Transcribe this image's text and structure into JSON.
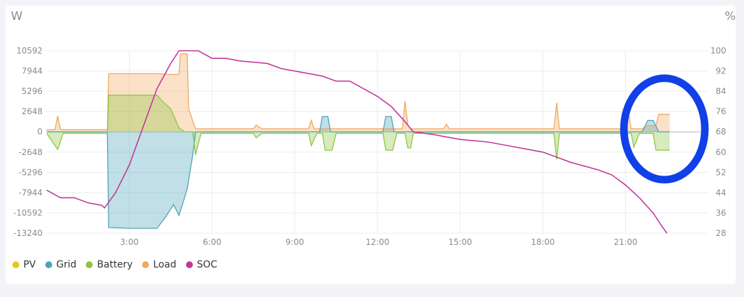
{
  "chart_data": {
    "type": "area",
    "left_unit": "W",
    "right_unit": "%",
    "y_ticks": [
      "10592",
      "7944",
      "5296",
      "2648",
      "0",
      "-2648",
      "-5296",
      "-7944",
      "-10592",
      "-13240"
    ],
    "y_tick_values": [
      10592,
      7944,
      5296,
      2648,
      0,
      -2648,
      -5296,
      -7944,
      -10592,
      -13240
    ],
    "y2_ticks": [
      "100",
      "92",
      "84",
      "76",
      "68",
      "60",
      "52",
      "44",
      "36",
      "28"
    ],
    "y2_tick_values": [
      100,
      92,
      84,
      76,
      68,
      60,
      52,
      44,
      36,
      28
    ],
    "x_ticks": [
      "3:00",
      "6:00",
      "9:00",
      "12:00",
      "15:00",
      "18:00",
      "21:00"
    ],
    "x_tick_values": [
      3,
      6,
      9,
      12,
      15,
      18,
      21
    ],
    "xlim": [
      0,
      24
    ],
    "ylim": [
      -13240,
      10592
    ],
    "y2lim": [
      28,
      100
    ],
    "grid": true,
    "legend_position": "bottom-left",
    "series": [
      {
        "name": "PV",
        "color": "#e6c619",
        "points": []
      },
      {
        "name": "Grid",
        "color": "#4aa3b8",
        "points": [
          [
            0,
            0
          ],
          [
            2.2,
            0
          ],
          [
            2.25,
            -12500
          ],
          [
            3,
            -12600
          ],
          [
            4,
            -12600
          ],
          [
            4.3,
            -11200
          ],
          [
            4.6,
            -9500
          ],
          [
            4.8,
            -10900
          ],
          [
            4.95,
            -9200
          ],
          [
            5.1,
            -7400
          ],
          [
            5.3,
            -3000
          ],
          [
            5.4,
            0
          ],
          [
            9.9,
            0
          ],
          [
            10.0,
            2000
          ],
          [
            10.2,
            2000
          ],
          [
            10.3,
            0
          ],
          [
            12.2,
            0
          ],
          [
            12.3,
            2000
          ],
          [
            12.5,
            2000
          ],
          [
            12.6,
            0
          ],
          [
            21.6,
            0
          ],
          [
            21.8,
            1500
          ],
          [
            22.0,
            1500
          ],
          [
            22.2,
            0
          ],
          [
            22.6,
            0
          ]
        ]
      },
      {
        "name": "Battery",
        "color": "#8cc63f",
        "points": [
          [
            0,
            -200
          ],
          [
            0.4,
            -2300
          ],
          [
            0.6,
            -200
          ],
          [
            2.2,
            -200
          ],
          [
            2.25,
            4800
          ],
          [
            3,
            4800
          ],
          [
            4,
            4800
          ],
          [
            4.2,
            4000
          ],
          [
            4.5,
            3000
          ],
          [
            4.8,
            500
          ],
          [
            5.0,
            0
          ],
          [
            5.3,
            0
          ],
          [
            5.4,
            -3000
          ],
          [
            5.6,
            -200
          ],
          [
            7.5,
            -200
          ],
          [
            7.6,
            -800
          ],
          [
            7.8,
            -200
          ],
          [
            9.5,
            -200
          ],
          [
            9.6,
            -1800
          ],
          [
            9.8,
            -200
          ],
          [
            10.0,
            -200
          ],
          [
            10.1,
            -2400
          ],
          [
            10.35,
            -2400
          ],
          [
            10.5,
            -200
          ],
          [
            12.2,
            -200
          ],
          [
            12.3,
            -2400
          ],
          [
            12.55,
            -2400
          ],
          [
            12.7,
            -200
          ],
          [
            13.0,
            -200
          ],
          [
            13.1,
            -2100
          ],
          [
            13.2,
            -2100
          ],
          [
            13.3,
            -200
          ],
          [
            18.4,
            -200
          ],
          [
            18.5,
            -3600
          ],
          [
            18.6,
            -200
          ],
          [
            21.2,
            -200
          ],
          [
            21.3,
            -2000
          ],
          [
            21.5,
            -200
          ],
          [
            22.0,
            -200
          ],
          [
            22.1,
            -2400
          ],
          [
            22.6,
            -2400
          ]
        ]
      },
      {
        "name": "Load",
        "color": "#f0a860",
        "points": [
          [
            0,
            300
          ],
          [
            0.3,
            300
          ],
          [
            0.4,
            2100
          ],
          [
            0.5,
            300
          ],
          [
            2.2,
            300
          ],
          [
            2.25,
            7600
          ],
          [
            3,
            7600
          ],
          [
            4,
            7600
          ],
          [
            4.5,
            7500
          ],
          [
            4.8,
            7500
          ],
          [
            4.85,
            10200
          ],
          [
            5.1,
            10200
          ],
          [
            5.15,
            3000
          ],
          [
            5.4,
            400
          ],
          [
            7.5,
            400
          ],
          [
            7.6,
            900
          ],
          [
            7.8,
            400
          ],
          [
            9.5,
            400
          ],
          [
            9.6,
            1500
          ],
          [
            9.7,
            400
          ],
          [
            12.9,
            400
          ],
          [
            13.0,
            4000
          ],
          [
            13.1,
            900
          ],
          [
            13.2,
            400
          ],
          [
            14.4,
            400
          ],
          [
            14.5,
            1000
          ],
          [
            14.6,
            400
          ],
          [
            18.4,
            400
          ],
          [
            18.5,
            3800
          ],
          [
            18.6,
            400
          ],
          [
            21.0,
            400
          ],
          [
            21.1,
            2700
          ],
          [
            21.2,
            400
          ],
          [
            21.6,
            400
          ],
          [
            21.8,
            800
          ],
          [
            22.1,
            800
          ],
          [
            22.2,
            2300
          ],
          [
            22.6,
            2300
          ]
        ]
      },
      {
        "name": "SOC",
        "color": "#c2379a",
        "points": [
          [
            0,
            45
          ],
          [
            0.5,
            42
          ],
          [
            1,
            42
          ],
          [
            1.5,
            40
          ],
          [
            2,
            39
          ],
          [
            2.1,
            38
          ],
          [
            2.5,
            44
          ],
          [
            3,
            55
          ],
          [
            3.5,
            70
          ],
          [
            4,
            85
          ],
          [
            4.5,
            95
          ],
          [
            4.8,
            100
          ],
          [
            5.5,
            100
          ],
          [
            6,
            97
          ],
          [
            6.5,
            97
          ],
          [
            7,
            96
          ],
          [
            8,
            95
          ],
          [
            8.5,
            93
          ],
          [
            9,
            92
          ],
          [
            10,
            90
          ],
          [
            10.5,
            88
          ],
          [
            11,
            88
          ],
          [
            12,
            82
          ],
          [
            12.5,
            78
          ],
          [
            13,
            72
          ],
          [
            13.3,
            68
          ],
          [
            14,
            67
          ],
          [
            15,
            65
          ],
          [
            16,
            64
          ],
          [
            17,
            62
          ],
          [
            18,
            60
          ],
          [
            18.5,
            58
          ],
          [
            19,
            56
          ],
          [
            20,
            53
          ],
          [
            20.5,
            51
          ],
          [
            21,
            47
          ],
          [
            21.5,
            42
          ],
          [
            22,
            36
          ],
          [
            22.3,
            31
          ],
          [
            22.5,
            28
          ]
        ]
      }
    ]
  },
  "legend": [
    {
      "label": "PV",
      "color": "#e6c619"
    },
    {
      "label": "Grid",
      "color": "#4aa3b8"
    },
    {
      "label": "Battery",
      "color": "#8cc63f"
    },
    {
      "label": "Load",
      "color": "#f0a860"
    },
    {
      "label": "SOC",
      "color": "#c2379a"
    }
  ]
}
